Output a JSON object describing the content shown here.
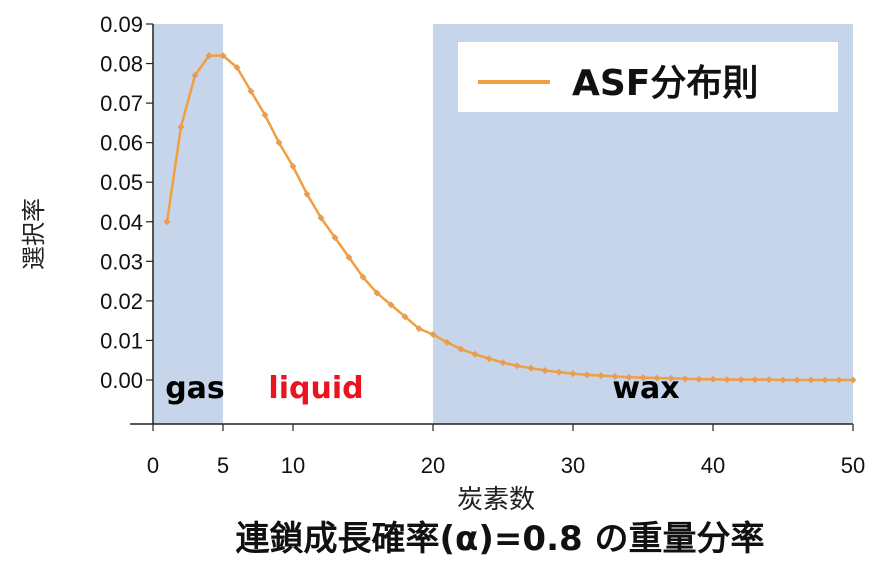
{
  "chart_data": {
    "type": "line",
    "title": "連鎖成長確率(α)=0.8 の重量分率",
    "xlabel": "炭素数",
    "ylabel": "選択率",
    "xlim": [
      0,
      50
    ],
    "ylim": [
      0,
      0.09
    ],
    "x_ticks": [
      0,
      5,
      10,
      20,
      30,
      40,
      50
    ],
    "y_ticks": [
      "0.00",
      "0.01",
      "0.02",
      "0.03",
      "0.04",
      "0.05",
      "0.06",
      "0.07",
      "0.08",
      "0.09"
    ],
    "legend": {
      "position": "top-right",
      "entries": [
        "ASF分布則"
      ]
    },
    "series": [
      {
        "name": "ASF分布則",
        "color": "#f0a040",
        "x": [
          1,
          2,
          3,
          4,
          5,
          6,
          7,
          8,
          9,
          10,
          11,
          12,
          13,
          14,
          15,
          16,
          17,
          18,
          19,
          20,
          21,
          22,
          23,
          24,
          25,
          26,
          27,
          28,
          29,
          30,
          31,
          32,
          33,
          34,
          35,
          36,
          37,
          38,
          39,
          40,
          41,
          42,
          43,
          44,
          45,
          46,
          47,
          48,
          49,
          50
        ],
        "values": [
          0.04,
          0.064,
          0.077,
          0.082,
          0.082,
          0.079,
          0.073,
          0.067,
          0.06,
          0.054,
          0.047,
          0.041,
          0.036,
          0.031,
          0.026,
          0.022,
          0.019,
          0.016,
          0.013,
          0.0115,
          0.0095,
          0.0078,
          0.0065,
          0.0054,
          0.0044,
          0.0036,
          0.003,
          0.0024,
          0.002,
          0.0016,
          0.0013,
          0.0011,
          0.0009,
          0.0007,
          0.0006,
          0.0005,
          0.0004,
          0.0003,
          0.0002,
          0.0002,
          0.0001,
          0.0001,
          0.0001,
          0.0001,
          0,
          0,
          0,
          0,
          0,
          0
        ]
      }
    ],
    "regions": [
      {
        "label": "gas",
        "from": 0,
        "to": 5,
        "shaded": true,
        "label_color": "#000000"
      },
      {
        "label": "liquid",
        "from": 5,
        "to": 20,
        "shaded": false,
        "label_color": "#e8141e"
      },
      {
        "label": "wax",
        "from": 20,
        "to": 50,
        "shaded": true,
        "label_color": "#000000"
      }
    ],
    "colors": {
      "region_fill": "#c7d5ea",
      "line": "#f0a040",
      "marker": "#e89c54"
    }
  }
}
